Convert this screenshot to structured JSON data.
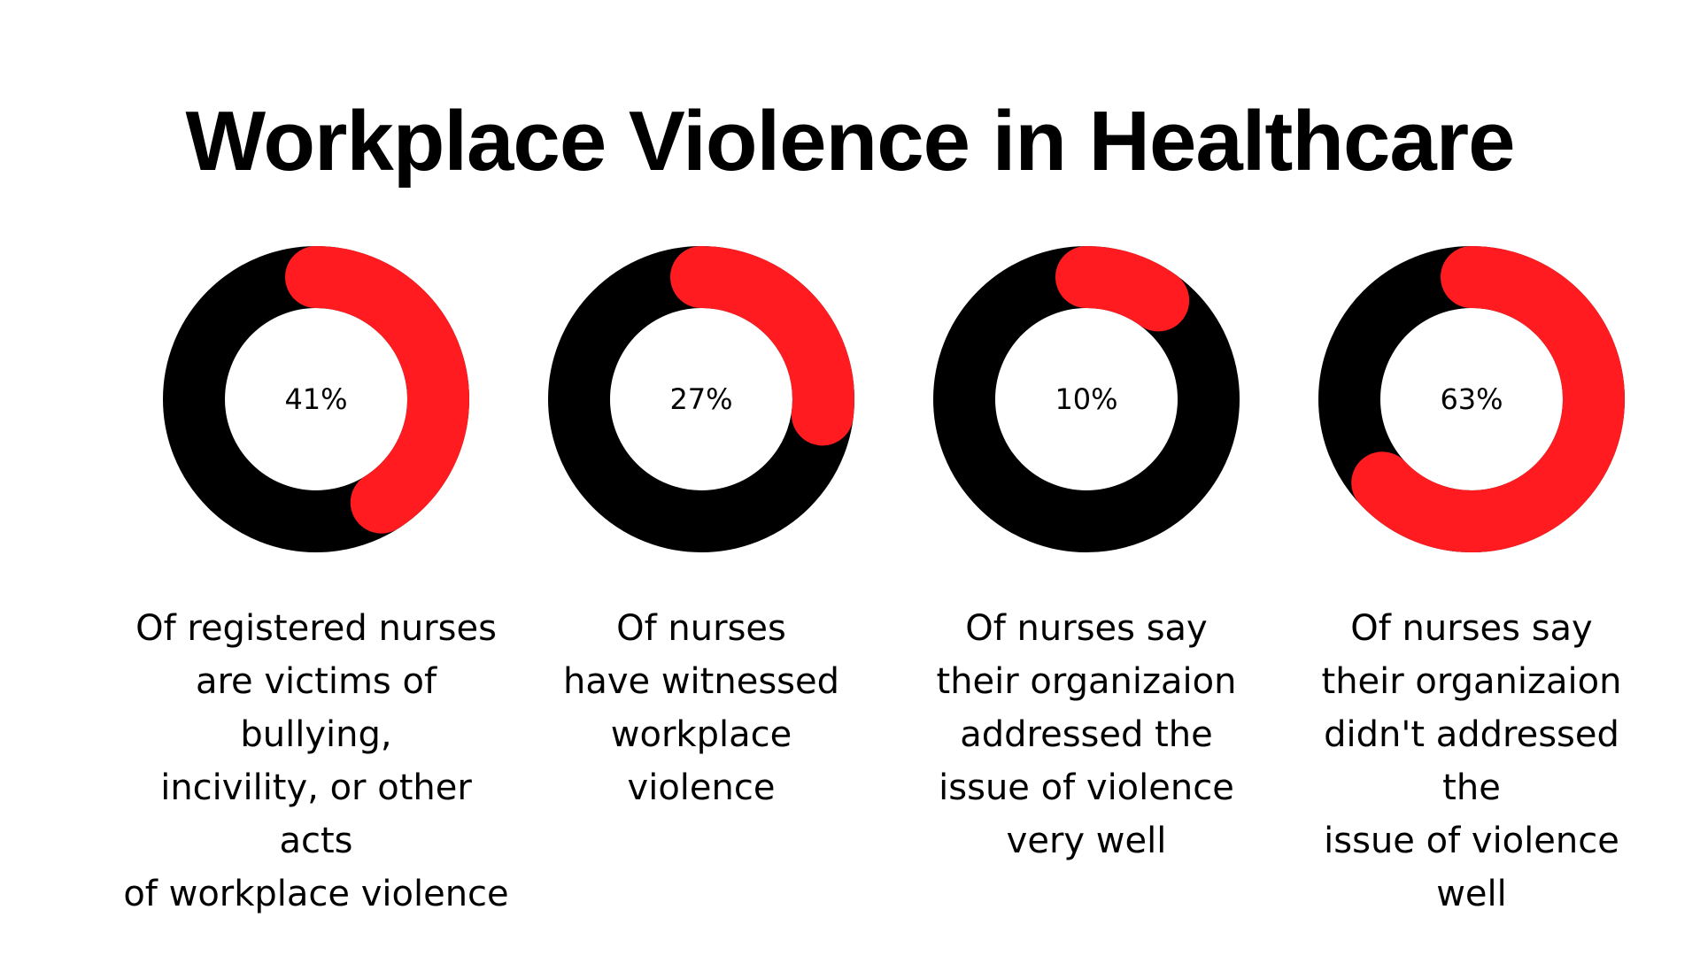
{
  "title": "Workplace Violence in Healthcare",
  "colors": {
    "filled": "#ff1b1f",
    "remainder": "#000000",
    "background": "#ffffff"
  },
  "chart_data": [
    {
      "type": "pie",
      "value": 41,
      "label": "41%",
      "caption_lines": [
        "Of registered nurses",
        "are victims of",
        "bullying,",
        "incivility, or other",
        "acts",
        "of workplace violence"
      ]
    },
    {
      "type": "pie",
      "value": 27,
      "label": "27%",
      "caption_lines": [
        "Of nurses",
        "have witnessed",
        "workplace",
        "violence"
      ]
    },
    {
      "type": "pie",
      "value": 10,
      "label": "10%",
      "caption_lines": [
        "Of nurses say",
        "their organizaion",
        "addressed the",
        "issue of violence",
        "very well"
      ]
    },
    {
      "type": "pie",
      "value": 63,
      "label": "63%",
      "caption_lines": [
        "Of nurses say",
        "their organizaion",
        "didn't addressed",
        "the",
        "issue of violence",
        "well"
      ]
    }
  ]
}
